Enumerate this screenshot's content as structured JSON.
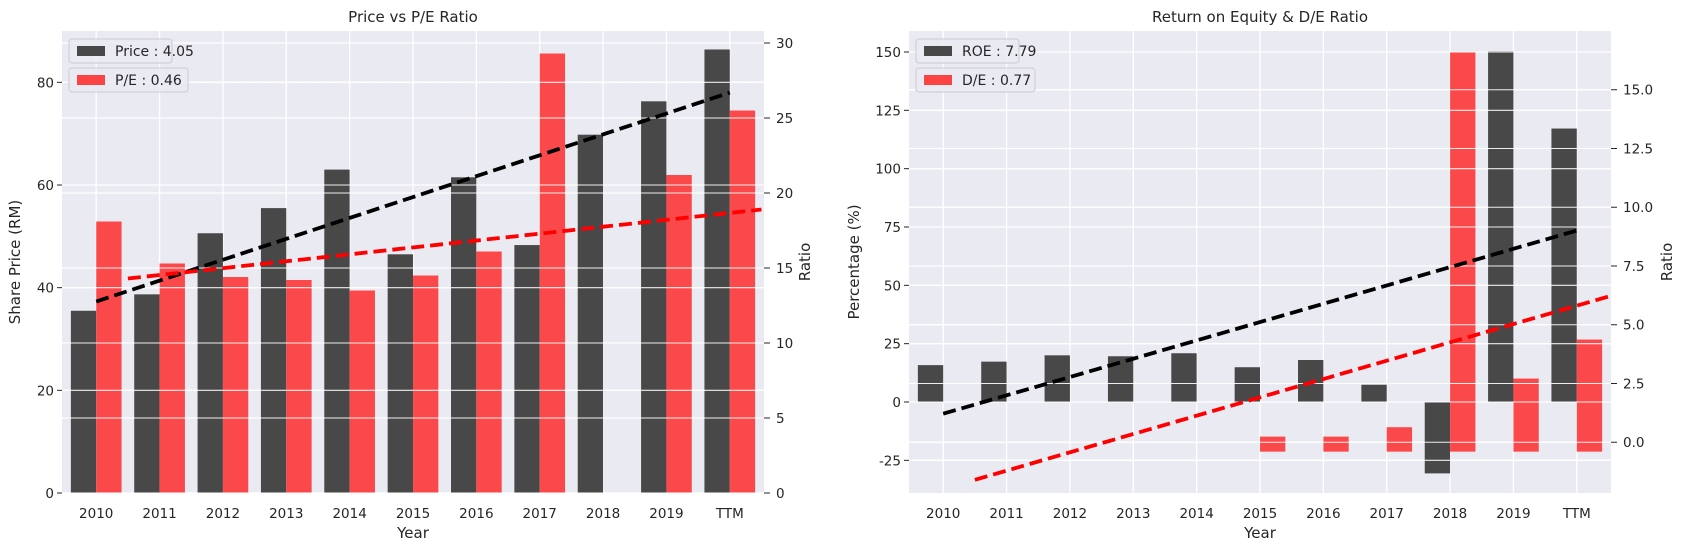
{
  "colors": {
    "background": "#eaeaf2",
    "grid": "#ffffff",
    "bar_dark": "#262626",
    "bar_red": "#ff2020",
    "trend_dark": "#000000",
    "trend_red": "#ff0000"
  },
  "chart_data": [
    {
      "type": "bar",
      "title": "Price vs P/E Ratio",
      "xlabel": "Year",
      "ylabel": "Share Price (RM)",
      "ylabel_right": "Ratio",
      "categories": [
        "2010",
        "2011",
        "2012",
        "2013",
        "2014",
        "2015",
        "2016",
        "2017",
        "2018",
        "2019",
        "TTM"
      ],
      "ylim": [
        0,
        90
      ],
      "ylim_right": [
        0,
        30.8
      ],
      "yticks": [
        "0",
        "20",
        "40",
        "60",
        "80"
      ],
      "yticks_right": [
        "0",
        "5",
        "10",
        "15",
        "20",
        "25",
        "30"
      ],
      "legend_position": "upper-left",
      "grid": true,
      "series": [
        {
          "name": "Price : 4.05",
          "axis": "left",
          "color": "#262626",
          "values": [
            35.5,
            38.7,
            50.6,
            55.5,
            63.0,
            46.5,
            61.5,
            48.3,
            69.8,
            76.3,
            86.4
          ]
        },
        {
          "name": "P/E : 0.46",
          "axis": "right",
          "color": "#ff2020",
          "values": [
            18.1,
            15.3,
            14.4,
            14.2,
            13.5,
            14.5,
            16.1,
            29.3,
            null,
            21.2,
            25.5
          ]
        }
      ],
      "trendlines": [
        {
          "axis": "left",
          "color": "#000000",
          "start_index": 0,
          "end_index": 10,
          "y_start": 37.3,
          "y_end": 78.0
        },
        {
          "axis": "right",
          "color": "#ff0000",
          "start_index": 0.5,
          "end_index": 10.5,
          "y_start": 14.3,
          "y_end": 18.9
        }
      ]
    },
    {
      "type": "bar",
      "title": "Return on Equity & D/E Ratio",
      "xlabel": "Year",
      "ylabel": "Percentage (%)",
      "ylabel_right": "Ratio",
      "categories": [
        "2010",
        "2011",
        "2012",
        "2013",
        "2014",
        "2015",
        "2016",
        "2017",
        "2018",
        "2019",
        "TTM"
      ],
      "ylim": [
        -39,
        159
      ],
      "ylim_right": [
        -2.16,
        17.5
      ],
      "yticks": [
        "-25",
        "0",
        "25",
        "50",
        "75",
        "100",
        "125",
        "150"
      ],
      "yticks_right": [
        "0.0",
        "2.5",
        "5.0",
        "7.5",
        "10.0",
        "12.5",
        "15.0"
      ],
      "legend_position": "upper-left",
      "grid": true,
      "series": [
        {
          "name": "ROE : 7.79",
          "axis": "left",
          "color": "#262626",
          "values": [
            15.8,
            17.3,
            20.0,
            19.6,
            20.9,
            14.9,
            18.0,
            7.4,
            -30.6,
            150.3,
            117.2
          ]
        },
        {
          "name": "D/E : 0.77",
          "axis": "right",
          "color": "#ff2020",
          "values": [
            null,
            null,
            null,
            null,
            null,
            0.24,
            0.24,
            0.64,
            16.6,
            2.71,
            4.37
          ]
        }
      ],
      "trendlines": [
        {
          "axis": "left",
          "color": "#000000",
          "start_index": 0,
          "end_index": 10,
          "y_start": -5.0,
          "y_end": 73.5
        },
        {
          "axis": "right",
          "color": "#ff0000",
          "start_index": 0.5,
          "end_index": 10.5,
          "y_start": -1.6,
          "y_end": 6.2
        }
      ]
    }
  ]
}
